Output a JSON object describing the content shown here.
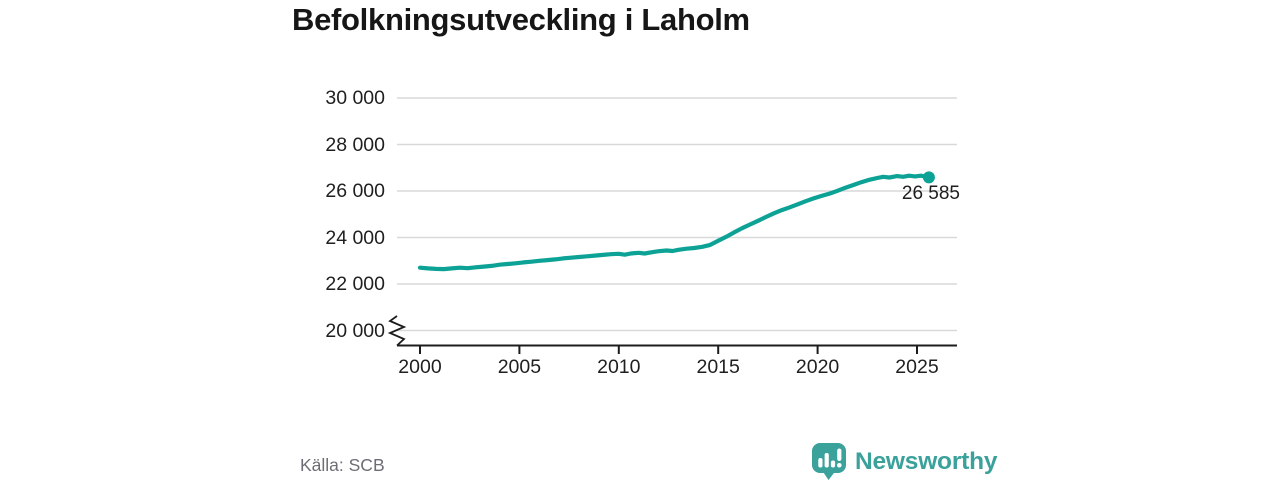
{
  "title": "Befolkningsutveckling i Laholm",
  "source": "Källa: SCB",
  "logo": {
    "text": "Newsworthy",
    "icon": "newsworthy-bars-icon"
  },
  "colors": {
    "background": "#ffffff",
    "title_text": "#161616",
    "tick_text": "#1f1f1f",
    "grid_line": "#d9d9d9",
    "axis_line": "#1c1c1c",
    "series_line": "#0da296",
    "source_text": "#6b6e74",
    "logo_teal": "#3ba19b"
  },
  "chart_data": {
    "type": "line",
    "title": "Befolkningsutveckling i Laholm",
    "xlabel": "",
    "ylabel": "",
    "grid": "horizontal",
    "legend": "none",
    "axis_break_at_y_min": true,
    "ylim": [
      20000,
      30000
    ],
    "xlim": [
      2000,
      2025.6
    ],
    "x_ticks": [
      2000,
      2005,
      2010,
      2015,
      2020,
      2025
    ],
    "x_tick_labels": [
      "2000",
      "2005",
      "2010",
      "2015",
      "2020",
      "2025"
    ],
    "y_ticks": [
      30000,
      28000,
      26000,
      24000,
      22000,
      20000
    ],
    "y_tick_labels": [
      "30 000",
      "28 000",
      "26 000",
      "24 000",
      "22 000",
      "20 000"
    ],
    "series": [
      {
        "points": [
          [
            2000.0,
            22700
          ],
          [
            2000.4,
            22670
          ],
          [
            2000.8,
            22650
          ],
          [
            2001.2,
            22640
          ],
          [
            2001.6,
            22670
          ],
          [
            2002.0,
            22700
          ],
          [
            2002.4,
            22680
          ],
          [
            2002.8,
            22720
          ],
          [
            2003.2,
            22750
          ],
          [
            2003.6,
            22780
          ],
          [
            2004.0,
            22830
          ],
          [
            2004.4,
            22860
          ],
          [
            2004.8,
            22890
          ],
          [
            2005.2,
            22930
          ],
          [
            2005.6,
            22960
          ],
          [
            2006.0,
            23000
          ],
          [
            2006.4,
            23030
          ],
          [
            2006.8,
            23060
          ],
          [
            2007.2,
            23100
          ],
          [
            2007.6,
            23130
          ],
          [
            2008.0,
            23160
          ],
          [
            2008.4,
            23190
          ],
          [
            2008.8,
            23220
          ],
          [
            2009.2,
            23250
          ],
          [
            2009.6,
            23280
          ],
          [
            2010.0,
            23300
          ],
          [
            2010.3,
            23260
          ],
          [
            2010.6,
            23310
          ],
          [
            2011.0,
            23340
          ],
          [
            2011.3,
            23310
          ],
          [
            2011.6,
            23360
          ],
          [
            2012.0,
            23410
          ],
          [
            2012.4,
            23440
          ],
          [
            2012.7,
            23420
          ],
          [
            2013.0,
            23470
          ],
          [
            2013.4,
            23520
          ],
          [
            2013.8,
            23550
          ],
          [
            2014.2,
            23600
          ],
          [
            2014.6,
            23680
          ],
          [
            2015.0,
            23860
          ],
          [
            2015.4,
            24030
          ],
          [
            2015.8,
            24220
          ],
          [
            2016.2,
            24400
          ],
          [
            2016.6,
            24560
          ],
          [
            2017.0,
            24720
          ],
          [
            2017.4,
            24880
          ],
          [
            2017.8,
            25040
          ],
          [
            2018.2,
            25180
          ],
          [
            2018.6,
            25300
          ],
          [
            2019.0,
            25430
          ],
          [
            2019.4,
            25560
          ],
          [
            2019.8,
            25680
          ],
          [
            2020.2,
            25790
          ],
          [
            2020.6,
            25890
          ],
          [
            2021.0,
            26010
          ],
          [
            2021.4,
            26140
          ],
          [
            2021.8,
            26260
          ],
          [
            2022.2,
            26380
          ],
          [
            2022.6,
            26480
          ],
          [
            2023.0,
            26560
          ],
          [
            2023.3,
            26610
          ],
          [
            2023.6,
            26580
          ],
          [
            2024.0,
            26640
          ],
          [
            2024.3,
            26610
          ],
          [
            2024.6,
            26660
          ],
          [
            2024.9,
            26630
          ],
          [
            2025.2,
            26660
          ],
          [
            2025.6,
            26585
          ]
        ]
      }
    ],
    "end_annotation": {
      "x": 2025.6,
      "y": 26585,
      "label": "26 585"
    }
  }
}
